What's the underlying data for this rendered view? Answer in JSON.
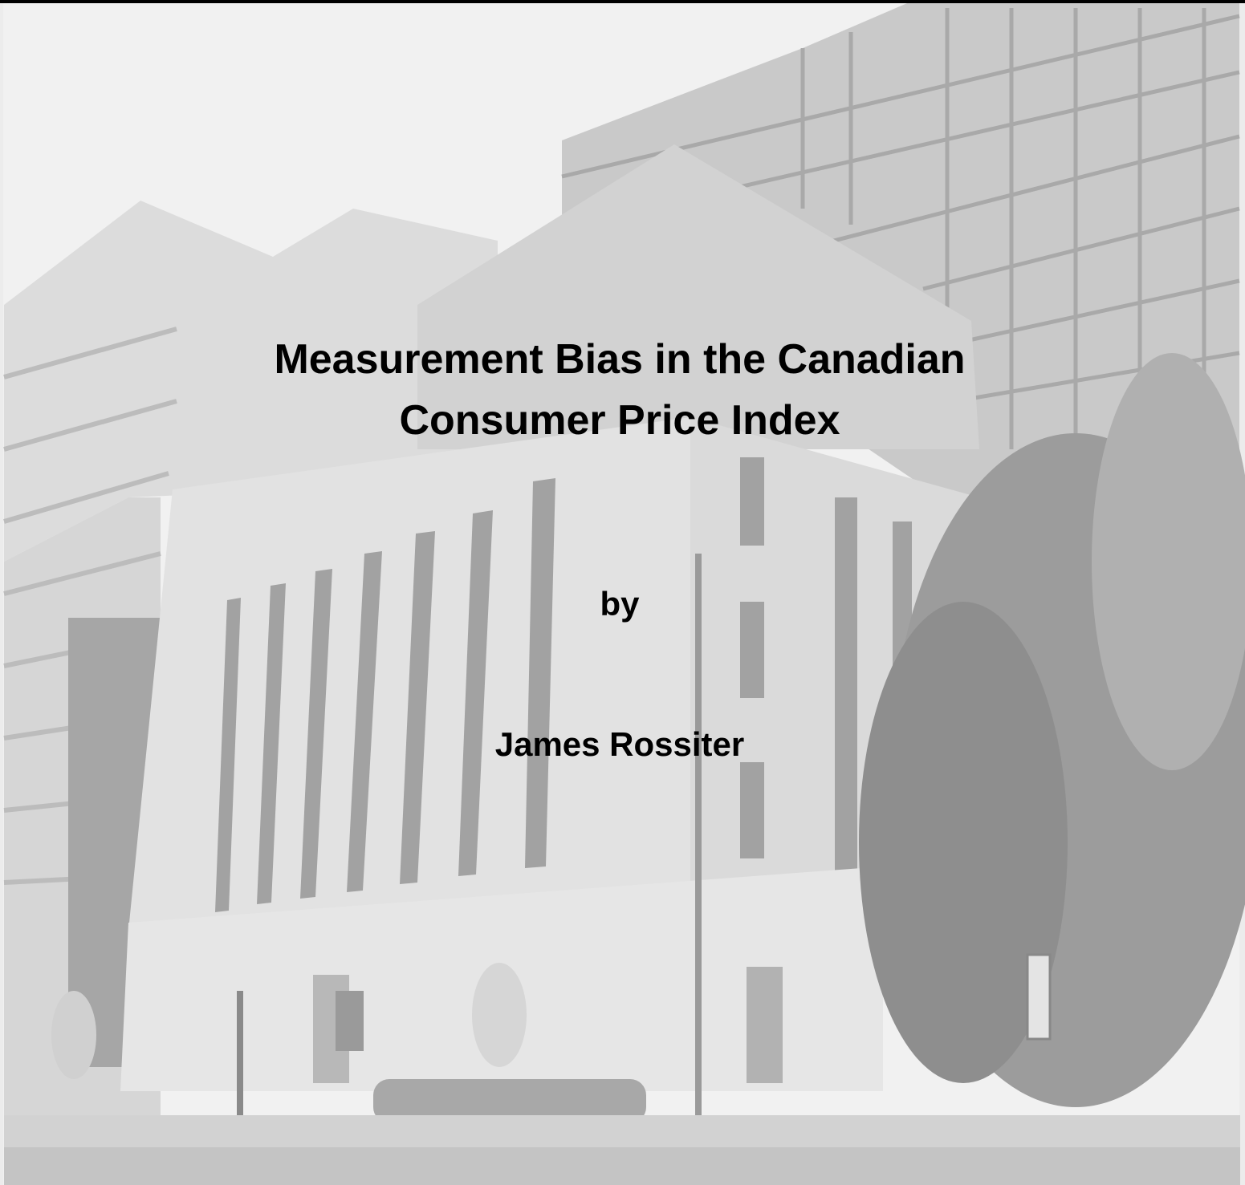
{
  "cover": {
    "title_lines": [
      "Measurement Bias in the Canadian",
      "Consumer Price Index"
    ],
    "by": "by",
    "author": "James Rossiter"
  }
}
